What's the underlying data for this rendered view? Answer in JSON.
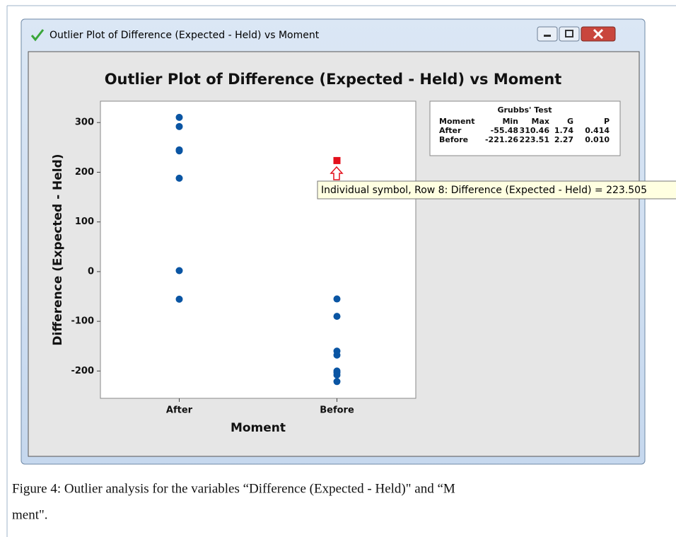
{
  "window": {
    "title": "Outlier Plot of Difference (Expected - Held) vs Moment"
  },
  "chart_data": {
    "type": "scatter",
    "title": "Outlier Plot of Difference (Expected - Held) vs Moment",
    "x_label": "Moment",
    "y_label": "Difference (Expected - Held)",
    "categories": [
      "After",
      "Before"
    ],
    "values": [
      [
        310.46,
        292,
        245,
        243,
        188,
        2,
        -55.48
      ],
      [
        -55,
        -90,
        -160,
        -168,
        -200,
        -203,
        -208,
        -221.26
      ]
    ],
    "outlier_values": [
      [],
      [
        223.51
      ]
    ],
    "color": "#0a55a3",
    "outlier_color": "#e3101c",
    "ylim": [
      -255,
      343
    ],
    "yticks": [
      -200,
      -100,
      0,
      100,
      200,
      300
    ],
    "tooltip": "Individual symbol, Row 8: Difference (Expected - Held) = 223.505"
  },
  "grubbs_table": {
    "title": "Grubbs' Test",
    "header": [
      "Moment",
      "Min",
      "Max",
      "G",
      "P"
    ],
    "rows": [
      [
        "After",
        "-55.48",
        "310.46",
        "1.74",
        "0.414"
      ],
      [
        "Before",
        "-221.26",
        "223.51",
        "2.27",
        "0.010"
      ]
    ]
  },
  "caption": [
    "Figure 4: Outlier analysis for the variables “Difference (Expected - Held)\" and “M",
    "ment\"."
  ]
}
